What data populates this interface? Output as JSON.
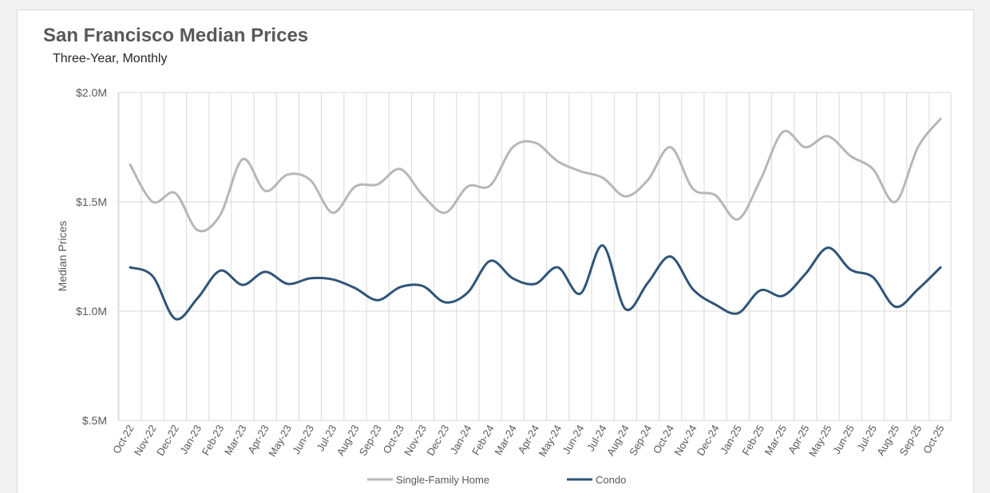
{
  "colors": {
    "single_family": "#b7b7b7",
    "condo": "#2f5478",
    "grid": "#d9d9d9",
    "text": "#595959"
  },
  "chart_data": {
    "type": "line",
    "title": "San Francisco Median Prices",
    "subtitle": "Three-Year, Monthly",
    "ylabel": "Median Prices",
    "xlabel": "",
    "ylim": [
      500000,
      2000000
    ],
    "y_ticks": [
      500000,
      1000000,
      1500000,
      2000000
    ],
    "y_tick_labels": [
      "$.5M",
      "$1.0M",
      "$1.5M",
      "$2.0M"
    ],
    "grid": true,
    "smooth": true,
    "legend_position": "bottom",
    "categories": [
      "Oct-22",
      "Nov-22",
      "Dec-22",
      "Jan-23",
      "Feb-23",
      "Mar-23",
      "Apr-23",
      "May-23",
      "Jun-23",
      "Jul-23",
      "Aug-23",
      "Sep-23",
      "Oct-23",
      "Nov-23",
      "Dec-23",
      "Jan-24",
      "Feb-24",
      "Mar-24",
      "Apr-24",
      "May-24",
      "Jun-24",
      "Jul-24",
      "Aug-24",
      "Sep-24",
      "Oct-24",
      "Nov-24",
      "Dec-24",
      "Jan-25",
      "Feb-25",
      "Mar-25",
      "Apr-25",
      "May-25",
      "Jun-25",
      "Jul-25",
      "Aug-25",
      "Sep-25",
      "Oct-25"
    ],
    "series": [
      {
        "name": "Single-Family Home",
        "values": [
          1670000,
          1500000,
          1540000,
          1370000,
          1440000,
          1695000,
          1550000,
          1625000,
          1600000,
          1450000,
          1570000,
          1580000,
          1650000,
          1530000,
          1450000,
          1570000,
          1575000,
          1750000,
          1770000,
          1685000,
          1640000,
          1610000,
          1525000,
          1600000,
          1750000,
          1560000,
          1530000,
          1420000,
          1600000,
          1820000,
          1750000,
          1800000,
          1710000,
          1650000,
          1500000,
          1750000,
          1880000
        ]
      },
      {
        "name": "Condo",
        "values": [
          1200000,
          1160000,
          965000,
          1060000,
          1185000,
          1120000,
          1180000,
          1125000,
          1150000,
          1145000,
          1105000,
          1050000,
          1110000,
          1115000,
          1040000,
          1085000,
          1230000,
          1150000,
          1125000,
          1200000,
          1080000,
          1300000,
          1010000,
          1130000,
          1250000,
          1100000,
          1030000,
          990000,
          1095000,
          1070000,
          1170000,
          1290000,
          1190000,
          1155000,
          1020000,
          1100000,
          1200000
        ]
      }
    ]
  }
}
